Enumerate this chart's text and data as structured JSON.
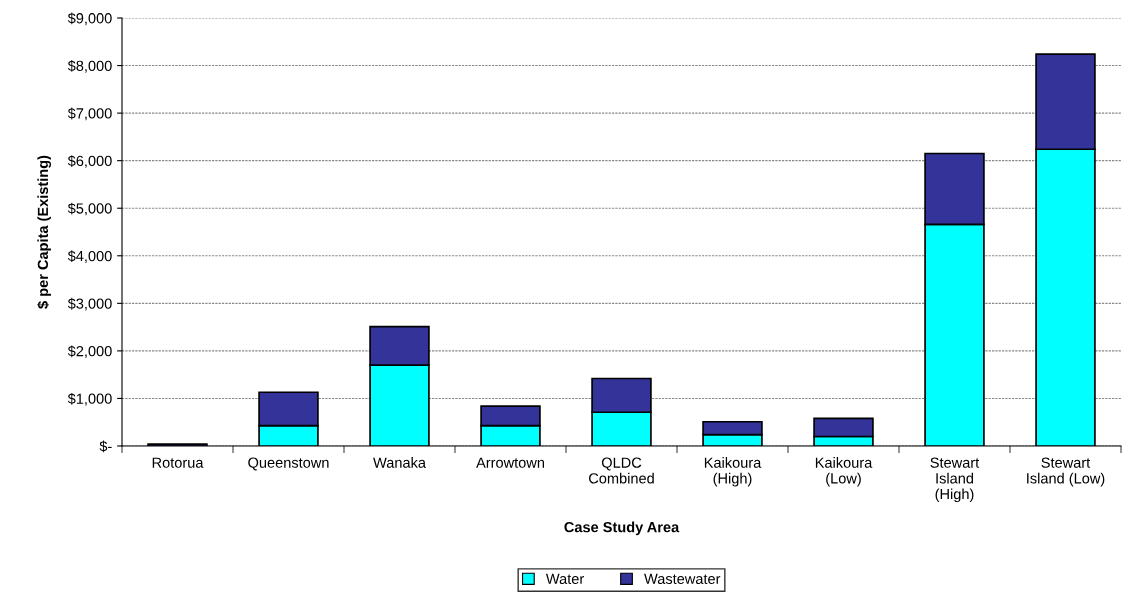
{
  "chart_data": {
    "type": "bar",
    "stacked": true,
    "xlabel": "Case Study Area",
    "ylabel": "$ per Capita (Existing)",
    "categories": [
      "Rotorua",
      "Queenstown",
      "Wanaka",
      "Arrowtown",
      "QLDC\nCombined",
      "Kaikoura\n(High)",
      "Kaikoura\n(Low)",
      "Stewart\nIsland\n(High)",
      "Stewart\nIsland (Low)"
    ],
    "series": [
      {
        "name": "Water",
        "color": "#00ffff",
        "values": [
          null,
          430,
          1700,
          430,
          710,
          240,
          200,
          4660,
          6240
        ]
      },
      {
        "name": "Wastewater",
        "color": "#333399",
        "values": [
          40,
          700,
          810,
          410,
          710,
          270,
          380,
          1490,
          2000
        ]
      }
    ],
    "ylim": [
      0,
      9000
    ],
    "yticks": [
      {
        "value": 0,
        "label": "$-"
      },
      {
        "value": 1000,
        "label": "$1,000"
      },
      {
        "value": 2000,
        "label": "$2,000"
      },
      {
        "value": 3000,
        "label": "$3,000"
      },
      {
        "value": 4000,
        "label": "$4,000"
      },
      {
        "value": 5000,
        "label": "$5,000"
      },
      {
        "value": 6000,
        "label": "$6,000"
      },
      {
        "value": 7000,
        "label": "$7,000"
      },
      {
        "value": 8000,
        "label": "$8,000"
      },
      {
        "value": 9000,
        "label": "$9,000"
      }
    ],
    "grid": "y",
    "legend": "bottom"
  }
}
